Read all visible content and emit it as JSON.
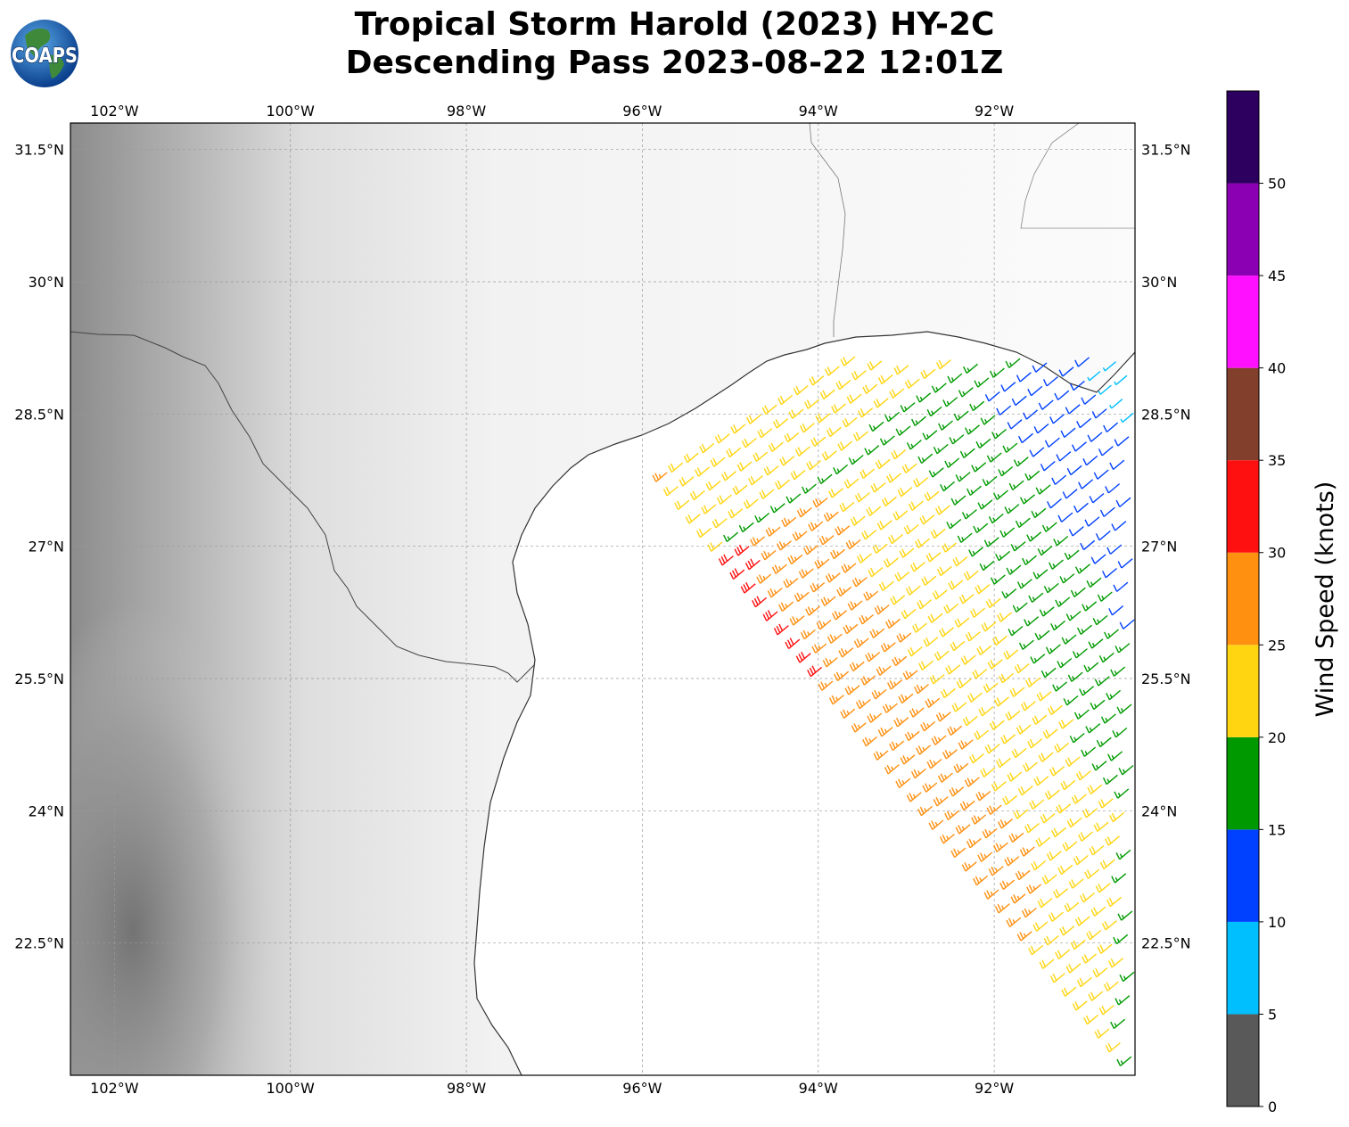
{
  "title": {
    "line1": "Tropical Storm Harold (2023) HY-2C",
    "line2": "Descending Pass 2023-08-22 12:01Z"
  },
  "logo": {
    "text": "COAPS",
    "icon": "coaps-globe-logo"
  },
  "map": {
    "lon_range": [
      -102.5,
      -90.4
    ],
    "lat_range": [
      21.0,
      31.8
    ],
    "lon_labels": [
      "102°W",
      "100°W",
      "98°W",
      "96°W",
      "94°W",
      "92°W"
    ],
    "lon_values": [
      -102,
      -100,
      -98,
      -96,
      -94,
      -92
    ],
    "lat_labels": [
      "31.5°N",
      "30°N",
      "28.5°N",
      "27°N",
      "25.5°N",
      "24°N",
      "22.5°N"
    ],
    "lat_values": [
      31.5,
      30,
      28.5,
      27,
      25.5,
      24,
      22.5
    ],
    "gridlines": true,
    "background": "grayscale-terrain"
  },
  "colorbar": {
    "title": "Wind Speed (knots)",
    "tick_labels": [
      "0",
      "5",
      "10",
      "15",
      "20",
      "25",
      "30",
      "35",
      "40",
      "45",
      "50"
    ],
    "bins": [
      {
        "from": 0,
        "to": 5,
        "color": "#595959"
      },
      {
        "from": 5,
        "to": 10,
        "color": "#00bfff"
      },
      {
        "from": 10,
        "to": 15,
        "color": "#0040ff"
      },
      {
        "from": 15,
        "to": 20,
        "color": "#009a00"
      },
      {
        "from": 20,
        "to": 25,
        "color": "#ffd511"
      },
      {
        "from": 25,
        "to": 30,
        "color": "#ff9010"
      },
      {
        "from": 30,
        "to": 35,
        "color": "#ff1010"
      },
      {
        "from": 35,
        "to": 40,
        "color": "#823f2b"
      },
      {
        "from": 40,
        "to": 45,
        "color": "#ff10ff"
      },
      {
        "from": 45,
        "to": 50,
        "color": "#8b00b2"
      },
      {
        "from": 50,
        "to": 55,
        "color": "#2d0060"
      }
    ]
  }
}
